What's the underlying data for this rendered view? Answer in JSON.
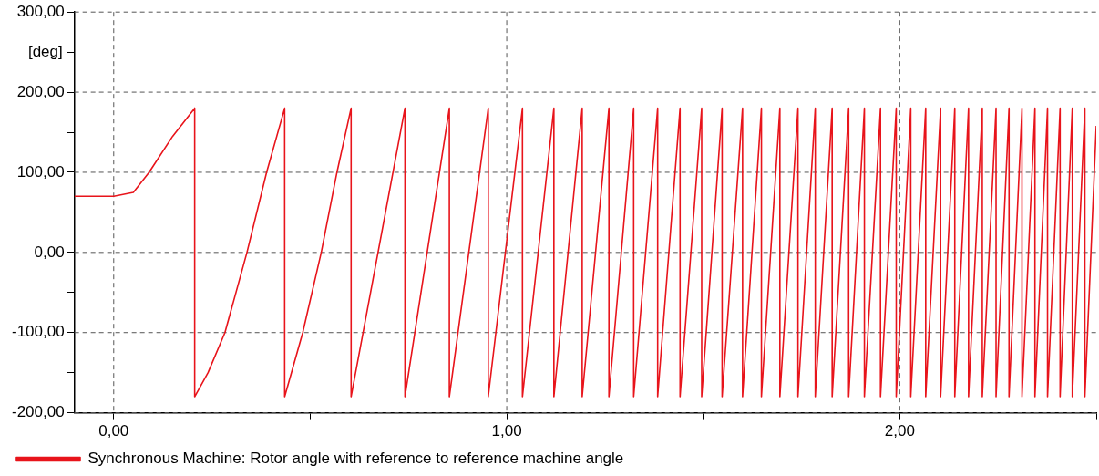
{
  "chart_data": {
    "type": "line",
    "ylabel": "[deg]",
    "xlim": [
      -0.1,
      2.5
    ],
    "ylim": [
      -200,
      300
    ],
    "xticks": [
      {
        "value": 0,
        "label": "0,00"
      },
      {
        "value": 0.5,
        "label": null
      },
      {
        "value": 1,
        "label": "1,00"
      },
      {
        "value": 1.5,
        "label": null
      },
      {
        "value": 2,
        "label": "2,00"
      },
      {
        "value": 2.5,
        "label": null
      }
    ],
    "yticks": [
      {
        "value": -200,
        "label": "-200,00"
      },
      {
        "value": -150,
        "label": null
      },
      {
        "value": -100,
        "label": "-100,00"
      },
      {
        "value": -50,
        "label": null
      },
      {
        "value": 0,
        "label": "0,00"
      },
      {
        "value": 50,
        "label": null
      },
      {
        "value": 100,
        "label": "100,00"
      },
      {
        "value": 150,
        "label": null
      },
      {
        "value": 200,
        "label": "200,00"
      },
      {
        "value": 250,
        "label": null
      },
      {
        "value": 300,
        "label": "300,00"
      }
    ],
    "grid": true,
    "legend": "bottom",
    "line_style": "solid",
    "series": [
      {
        "name": "Synchronous Machine: Rotor angle with reference to reference machine angle",
        "color": "#e8141b",
        "x": [
          -0.1,
          0,
          0.05,
          0.09,
          0.15,
          0.206,
          0.206,
          0.24,
          0.283,
          0.339,
          0.389,
          0.435,
          0.435,
          0.481,
          0.528,
          0.568,
          0.604,
          0.604,
          0.741,
          0.741,
          0.854,
          0.854,
          0.953,
          0.953,
          1.04,
          1.04,
          1.12,
          1.12,
          1.192,
          1.192,
          1.26,
          1.26,
          1.323,
          1.323,
          1.384,
          1.384,
          1.441,
          1.441,
          1.496,
          1.496,
          1.548,
          1.548,
          1.6,
          1.6,
          1.648,
          1.648,
          1.695,
          1.695,
          1.741,
          1.741,
          1.785,
          1.785,
          1.828,
          1.828,
          1.87,
          1.87,
          1.91,
          1.91,
          1.951,
          1.951,
          1.991,
          1.991,
          2.028,
          2.028,
          2.066,
          2.066,
          2.104,
          2.104,
          2.14,
          2.14,
          2.175,
          2.175,
          2.21,
          2.21,
          2.245,
          2.245,
          2.278,
          2.278,
          2.311,
          2.311,
          2.344,
          2.344,
          2.376,
          2.376,
          2.408,
          2.408,
          2.439,
          2.439,
          2.471,
          2.471,
          2.5
        ],
        "values": [
          70,
          70,
          75,
          100,
          145,
          180,
          -180,
          -150,
          -100,
          0,
          100,
          180,
          -180,
          -100,
          0,
          100,
          180,
          -180,
          180,
          -180,
          180,
          -180,
          180,
          -180,
          180,
          -180,
          180,
          -180,
          180,
          -180,
          180,
          -180,
          180,
          -180,
          180,
          -180,
          180,
          -180,
          180,
          -180,
          180,
          -180,
          180,
          -180,
          180,
          -180,
          180,
          -180,
          180,
          -180,
          180,
          -180,
          180,
          -180,
          180,
          -180,
          180,
          -180,
          180,
          -180,
          180,
          -180,
          180,
          -180,
          180,
          -180,
          180,
          -180,
          180,
          -180,
          180,
          -180,
          180,
          -180,
          180,
          -180,
          180,
          -180,
          180,
          -180,
          180,
          -180,
          180,
          -180,
          180,
          -180,
          180,
          -180,
          180,
          -180,
          158
        ]
      }
    ]
  }
}
